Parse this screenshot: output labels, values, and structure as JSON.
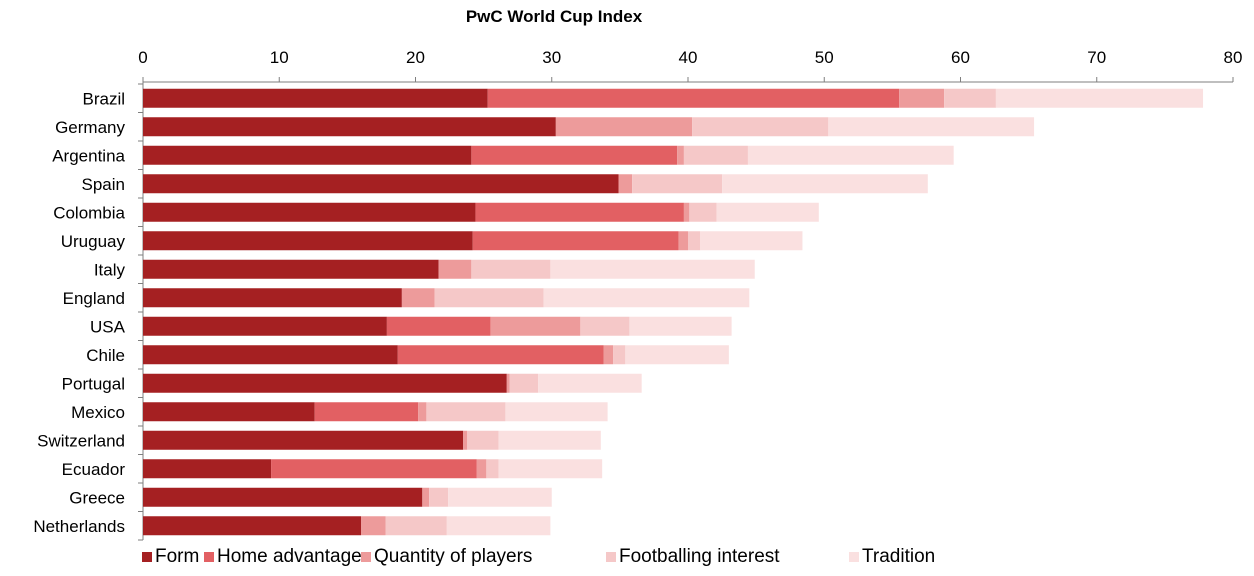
{
  "chart_data": {
    "type": "bar",
    "orientation": "horizontal",
    "stacked": true,
    "title": "PwC World Cup Index",
    "xlim": [
      0,
      80
    ],
    "xticks": [
      0,
      10,
      20,
      30,
      40,
      50,
      60,
      70,
      80
    ],
    "x_axis_position": "top",
    "grid": false,
    "legend_position": "bottom",
    "categories": [
      "Brazil",
      "Germany",
      "Argentina",
      "Spain",
      "Colombia",
      "Uruguay",
      "Italy",
      "England",
      "USA",
      "Chile",
      "Portugal",
      "Mexico",
      "Switzerland",
      "Ecuador",
      "Greece",
      "Netherlands"
    ],
    "series": [
      {
        "name": "Form",
        "color": "#a52022",
        "values": [
          25.3,
          30.3,
          24.1,
          34.9,
          24.4,
          24.2,
          21.7,
          19.0,
          17.9,
          18.7,
          26.7,
          12.6,
          23.5,
          9.4,
          20.5,
          16.0
        ]
      },
      {
        "name": "Home advantage",
        "color": "#e26063",
        "values": [
          30.2,
          0,
          15.1,
          0,
          15.3,
          15.1,
          0,
          0,
          7.6,
          15.1,
          0,
          7.6,
          0,
          15.1,
          0,
          0
        ]
      },
      {
        "name": "Quantity of players",
        "color": "#ed9b9b",
        "values": [
          3.3,
          10.0,
          0.5,
          1.0,
          0.4,
          0.7,
          2.4,
          2.4,
          6.6,
          0.7,
          0.2,
          0.6,
          0.3,
          0.7,
          0.5,
          1.8
        ]
      },
      {
        "name": "Footballing interest",
        "color": "#f5c8c8",
        "values": [
          3.8,
          10.0,
          4.7,
          6.6,
          2.0,
          0.9,
          5.8,
          8.0,
          3.6,
          0.9,
          2.1,
          5.8,
          2.3,
          0.9,
          1.4,
          4.5
        ]
      },
      {
        "name": "Tradition",
        "color": "#fae0e0",
        "values": [
          15.2,
          15.1,
          15.1,
          15.1,
          7.5,
          7.5,
          15.0,
          15.1,
          7.5,
          7.6,
          7.6,
          7.5,
          7.5,
          7.6,
          7.6,
          7.6
        ]
      }
    ]
  }
}
